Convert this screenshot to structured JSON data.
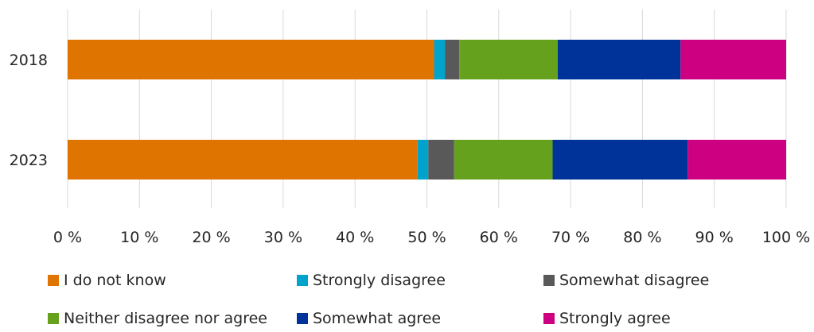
{
  "chart_data": {
    "type": "bar",
    "orientation": "horizontal",
    "stacked": true,
    "percent_stacked": true,
    "categories": [
      "2018",
      "2023"
    ],
    "series": [
      {
        "name": "I do not know",
        "color": "#E07400",
        "values": [
          51.0,
          48.7
        ]
      },
      {
        "name": "Strongly disagree",
        "color": "#00A3CC",
        "values": [
          1.5,
          1.5
        ]
      },
      {
        "name": "Somewhat disagree",
        "color": "#595959",
        "values": [
          2.0,
          3.6
        ]
      },
      {
        "name": "Neither disagree nor agree",
        "color": "#66A11E",
        "values": [
          13.7,
          13.7
        ]
      },
      {
        "name": "Somewhat agree",
        "color": "#003399",
        "values": [
          17.1,
          18.8
        ]
      },
      {
        "name": "Strongly agree",
        "color": "#CC0080",
        "values": [
          14.7,
          13.7
        ]
      }
    ],
    "xlim": [
      0,
      100
    ],
    "xticks": [
      "0 %",
      "10 %",
      "20 %",
      "30 %",
      "40 %",
      "50 %",
      "60 %",
      "70 %",
      "80 %",
      "90 %",
      "100 %"
    ],
    "grid": "vertical",
    "legend_position": "bottom",
    "title": "",
    "xlabel": "",
    "ylabel": ""
  }
}
